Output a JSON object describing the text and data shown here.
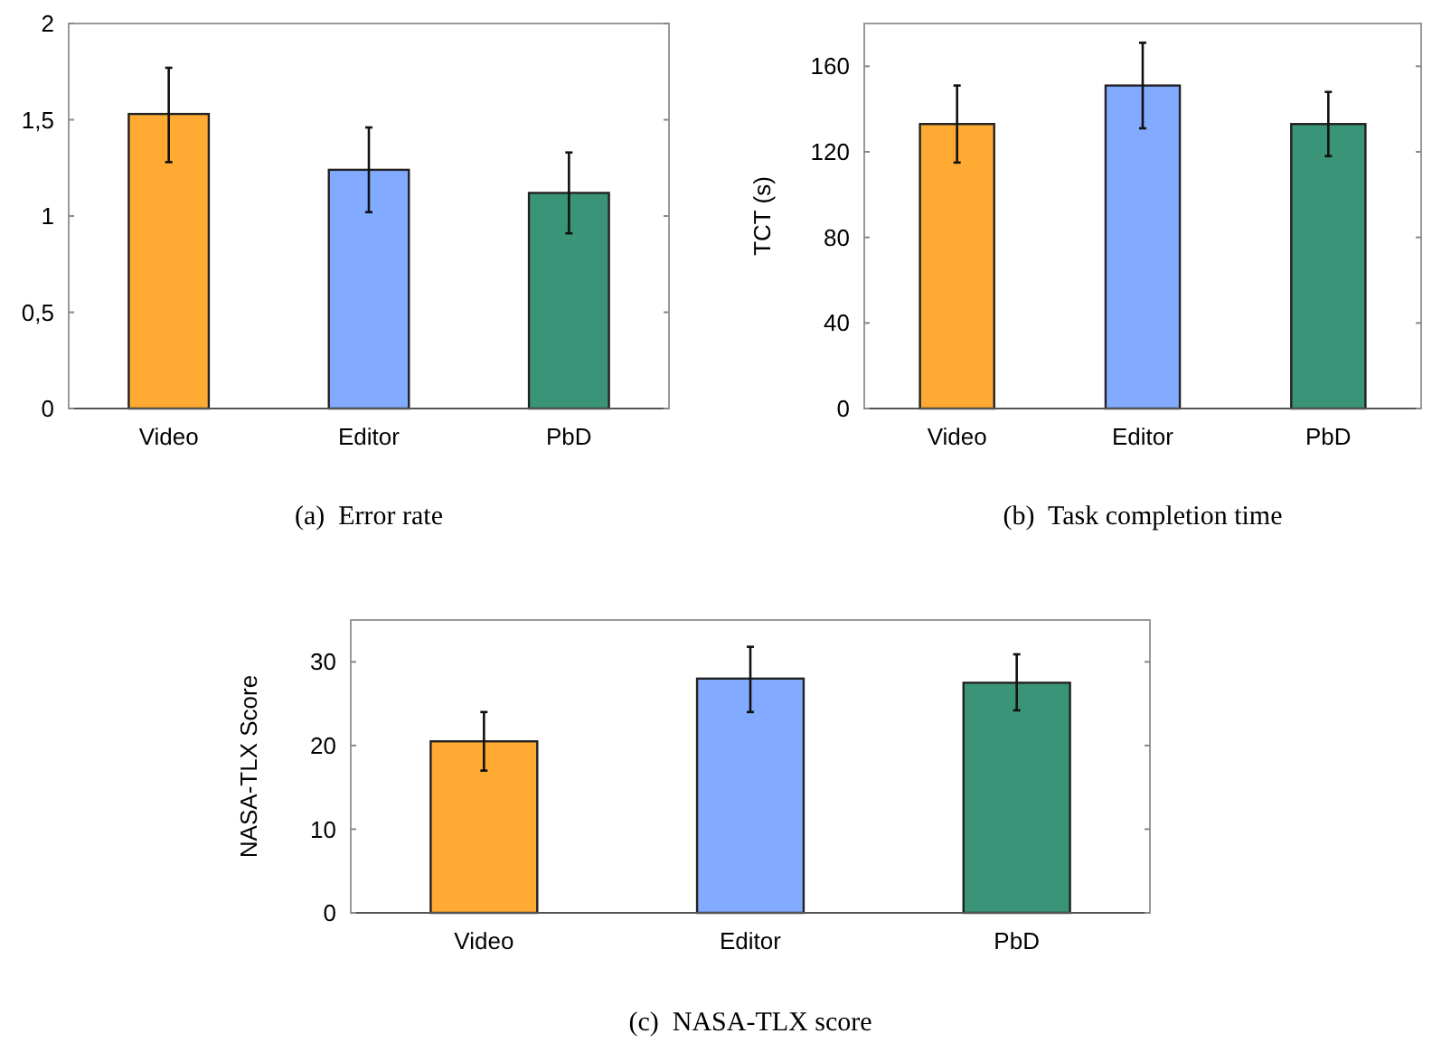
{
  "chart_data": [
    {
      "type": "bar",
      "title": "(a)  Error rate",
      "categories": [
        "Video",
        "Editor",
        "PbD"
      ],
      "values": [
        1.53,
        1.24,
        1.12
      ],
      "colors": [
        "#ffab33",
        "#82aaff",
        "#3a9477"
      ],
      "errors": [
        [
          1.28,
          1.77
        ],
        [
          1.02,
          1.46
        ],
        [
          0.91,
          1.33
        ]
      ],
      "ylim": [
        0,
        2
      ],
      "yticks": [
        0,
        {
          "value": 0.5,
          "label": "0,5"
        },
        1,
        {
          "value": 1.5,
          "label": "1,5"
        },
        2
      ],
      "grid": false
    },
    {
      "type": "bar",
      "title": "(b)  Task completion time",
      "ylabel": "TCT (s)",
      "categories": [
        "Video",
        "Editor",
        "PbD"
      ],
      "values": [
        133,
        151,
        133
      ],
      "colors": [
        "#ffab33",
        "#82aaff",
        "#3a9477"
      ],
      "errors": [
        [
          115,
          151
        ],
        [
          131,
          171
        ],
        [
          118,
          148
        ]
      ],
      "ylim": [
        0,
        180
      ],
      "yticks": [
        0,
        40,
        80,
        120,
        160
      ],
      "grid": false
    },
    {
      "type": "bar",
      "title": "(c)  NASA-TLX score",
      "ylabel": "NASA-TLX Score",
      "categories": [
        "Video",
        "Editor",
        "PbD"
      ],
      "values": [
        20.5,
        28,
        27.5
      ],
      "colors": [
        "#ffab33",
        "#82aaff",
        "#3a9477"
      ],
      "errors": [
        [
          17,
          24
        ],
        [
          24,
          31.8
        ],
        [
          24.2,
          30.9
        ]
      ],
      "ylim": [
        0,
        35
      ],
      "yticks": [
        0,
        10,
        20,
        30
      ],
      "grid": false
    }
  ]
}
